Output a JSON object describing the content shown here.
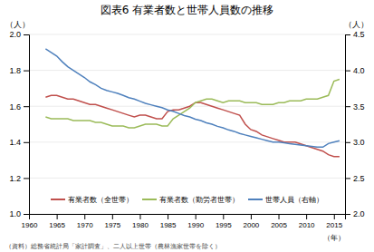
{
  "chart_data": {
    "type": "line",
    "title": "図表6  有業者数と世帯人員数の推移",
    "ylabel": "（人）",
    "y2label": "（人）",
    "xlabel": "（年）",
    "source": "（資料）総務省統計局「家計調査」、二人以上世帯（農林漁家世帯を除く）",
    "x": [
      1963,
      1964,
      1965,
      1966,
      1967,
      1968,
      1969,
      1970,
      1971,
      1972,
      1973,
      1974,
      1975,
      1976,
      1977,
      1978,
      1979,
      1980,
      1981,
      1982,
      1983,
      1984,
      1985,
      1986,
      1987,
      1988,
      1989,
      1990,
      1991,
      1992,
      1993,
      1994,
      1995,
      1996,
      1997,
      1998,
      1999,
      2000,
      2001,
      2002,
      2003,
      2004,
      2005,
      2006,
      2007,
      2008,
      2009,
      2010,
      2011,
      2012,
      2013,
      2014,
      2015,
      2016
    ],
    "series": [
      {
        "name": "有業者数（全世帯）",
        "color": "#c0504d",
        "values": [
          1.65,
          1.66,
          1.66,
          1.65,
          1.64,
          1.64,
          1.63,
          1.62,
          1.61,
          1.61,
          1.6,
          1.59,
          1.58,
          1.57,
          1.56,
          1.55,
          1.54,
          1.55,
          1.55,
          1.54,
          1.53,
          1.53,
          1.57,
          1.58,
          1.58,
          1.59,
          1.6,
          1.62,
          1.62,
          1.61,
          1.6,
          1.59,
          1.58,
          1.57,
          1.56,
          1.55,
          1.5,
          1.47,
          1.46,
          1.44,
          1.43,
          1.42,
          1.41,
          1.4,
          1.4,
          1.4,
          1.39,
          1.38,
          1.37,
          1.36,
          1.35,
          1.33,
          1.32,
          1.32
        ]
      },
      {
        "name": "有業者数（勤労者世帯）",
        "color": "#9bbb59",
        "values": [
          1.54,
          1.53,
          1.53,
          1.53,
          1.53,
          1.52,
          1.52,
          1.52,
          1.52,
          1.51,
          1.51,
          1.5,
          1.49,
          1.49,
          1.49,
          1.48,
          1.48,
          1.49,
          1.5,
          1.5,
          1.5,
          1.49,
          1.49,
          1.53,
          1.55,
          1.57,
          1.59,
          1.62,
          1.63,
          1.64,
          1.64,
          1.63,
          1.62,
          1.63,
          1.63,
          1.63,
          1.62,
          1.62,
          1.62,
          1.61,
          1.61,
          1.61,
          1.62,
          1.62,
          1.63,
          1.63,
          1.63,
          1.64,
          1.64,
          1.64,
          1.65,
          1.66,
          1.74,
          1.75
        ]
      },
      {
        "name": "世帯人員（右軸）",
        "color": "#4f81bd",
        "axis": "y2",
        "values": [
          4.3,
          4.25,
          4.2,
          4.12,
          4.05,
          4.0,
          3.95,
          3.9,
          3.84,
          3.8,
          3.75,
          3.72,
          3.7,
          3.68,
          3.65,
          3.62,
          3.6,
          3.57,
          3.54,
          3.52,
          3.5,
          3.48,
          3.45,
          3.43,
          3.4,
          3.37,
          3.35,
          3.32,
          3.3,
          3.27,
          3.25,
          3.22,
          3.2,
          3.17,
          3.15,
          3.12,
          3.1,
          3.08,
          3.06,
          3.04,
          3.02,
          3.0,
          3.0,
          2.99,
          2.98,
          2.97,
          2.96,
          2.95,
          2.94,
          2.93,
          2.93,
          2.98,
          3.0,
          3.02
        ]
      }
    ],
    "xlim": [
      1960,
      2017
    ],
    "xticks": [
      1960,
      1965,
      1970,
      1975,
      1980,
      1985,
      1990,
      1995,
      2000,
      2005,
      2010,
      2015
    ],
    "ylim": [
      1.0,
      2.0
    ],
    "yticks": [
      {
        "value": 1.0,
        "label": "1.0"
      },
      1.2,
      1.4,
      1.6,
      1.8,
      {
        "value": 2.0,
        "label": "2.0"
      }
    ],
    "y2lim": [
      2.0,
      4.5
    ],
    "y2ticks": [
      {
        "value": 2.0,
        "label": "2.0"
      },
      2.5,
      {
        "value": 3.0,
        "label": "3.0"
      },
      3.5,
      {
        "value": 4.0,
        "label": "4.0"
      },
      4.5
    ],
    "grid": true,
    "legend": "lower center"
  }
}
